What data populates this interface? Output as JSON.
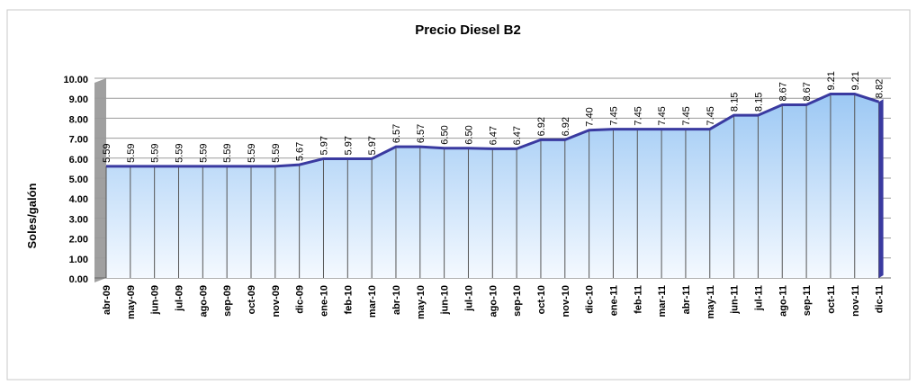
{
  "chart_data": {
    "type": "area",
    "title": "Precio Diesel B2",
    "y_label": "Soles/galón",
    "categories": [
      "abr-09",
      "may-09",
      "jun-09",
      "jul-09",
      "ago-09",
      "sep-09",
      "oct-09",
      "nov-09",
      "dic-09",
      "ene-10",
      "feb-10",
      "mar-10",
      "abr-10",
      "may-10",
      "jun-10",
      "jul-10",
      "ago-10",
      "sep-10",
      "oct-10",
      "nov-10",
      "dic-10",
      "ene-11",
      "feb-11",
      "mar-11",
      "abr-11",
      "may-11",
      "jun-11",
      "jul-11",
      "ago-11",
      "sep-11",
      "oct-11",
      "nov-11",
      "dic-11"
    ],
    "values": [
      5.59,
      5.59,
      5.59,
      5.59,
      5.59,
      5.59,
      5.59,
      5.59,
      5.67,
      5.97,
      5.97,
      5.97,
      6.57,
      6.57,
      6.5,
      6.5,
      6.47,
      6.47,
      6.92,
      6.92,
      7.4,
      7.45,
      7.45,
      7.45,
      7.45,
      7.45,
      8.15,
      8.15,
      8.67,
      8.67,
      9.21,
      9.21,
      8.82
    ],
    "value_labels": [
      "5.59",
      "5.59",
      "5.59",
      "5.59",
      "5.59",
      "5.59",
      "5.59",
      "5.59",
      "5.67",
      "5.97",
      "5.97",
      "5.97",
      "6.57",
      "6.57",
      "6.50",
      "6.50",
      "6.47",
      "6.47",
      "6.92",
      "6.92",
      "7.40",
      "7.45",
      "7.45",
      "7.45",
      "7.45",
      "7.45",
      "8.15",
      "8.15",
      "8.67",
      "8.67",
      "9.21",
      "9.21",
      "8.82"
    ],
    "color": "#3a3aa0",
    "ylim": [
      0,
      10
    ],
    "yticks": [
      {
        "value": 0,
        "label": "0.00"
      },
      {
        "value": 1,
        "label": "1.00"
      },
      {
        "value": 2,
        "label": "2.00"
      },
      {
        "value": 3,
        "label": "3.00"
      },
      {
        "value": 4,
        "label": "4.00"
      },
      {
        "value": 5,
        "label": "5.00"
      },
      {
        "value": 6,
        "label": "6.00"
      },
      {
        "value": 7,
        "label": "7.00"
      },
      {
        "value": 8,
        "label": "8.00"
      },
      {
        "value": 9,
        "label": "9.00"
      },
      {
        "value": 10,
        "label": "10.00"
      }
    ],
    "grid": true
  }
}
